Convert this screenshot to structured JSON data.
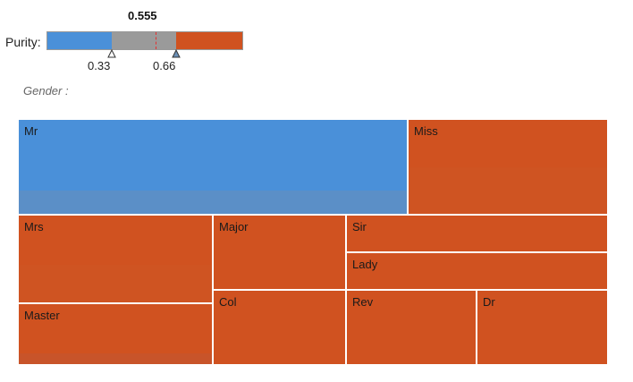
{
  "colors": {
    "blue": "#4a90d9",
    "blue_dim": "#5b8fc7",
    "orange": "#d05220",
    "orange_dim": "#cf5422",
    "gray": "#9a9a9a",
    "marker": "#e63030"
  },
  "purity": {
    "value": "0.555",
    "label": "Purity:",
    "low_threshold": "0.33",
    "high_threshold": "0.66"
  },
  "filter": {
    "label": "Gender :"
  },
  "treemap": {
    "cells": [
      {
        "name": "cell-mr",
        "label": "Mr"
      },
      {
        "name": "cell-miss",
        "label": "Miss"
      },
      {
        "name": "cell-mrs",
        "label": "Mrs"
      },
      {
        "name": "cell-master",
        "label": "Master"
      },
      {
        "name": "cell-major",
        "label": "Major"
      },
      {
        "name": "cell-sir",
        "label": "Sir"
      },
      {
        "name": "cell-lady",
        "label": "Lady"
      },
      {
        "name": "cell-col",
        "label": "Col"
      },
      {
        "name": "cell-rev",
        "label": "Rev"
      },
      {
        "name": "cell-dr",
        "label": "Dr"
      }
    ]
  }
}
